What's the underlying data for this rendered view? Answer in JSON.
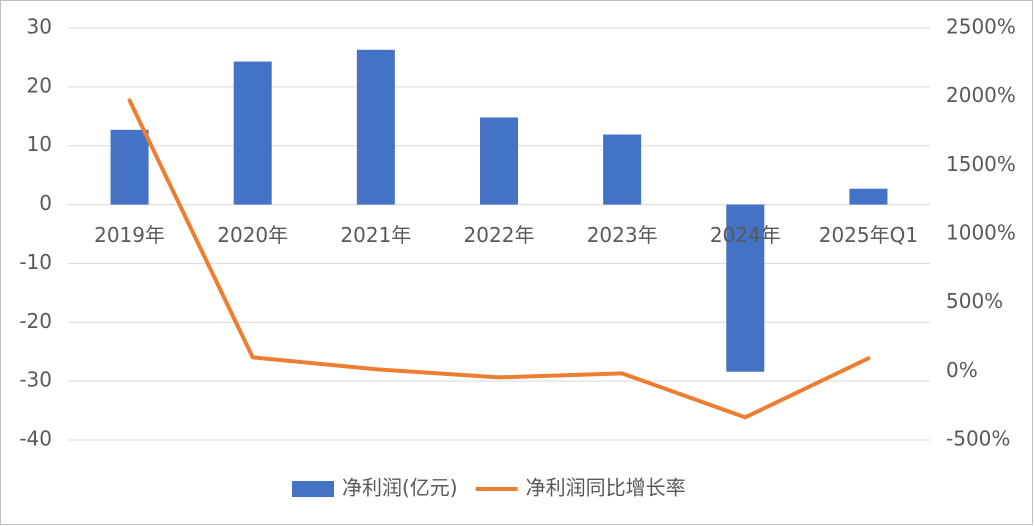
{
  "chart_data": {
    "type": "combo",
    "categories": [
      "2019年",
      "2020年",
      "2021年",
      "2022年",
      "2023年",
      "2024年",
      "2025年Q1"
    ],
    "series": [
      {
        "name": "净利润(亿元)",
        "type": "bar",
        "color": "#4472c4",
        "values": [
          12.7,
          24.3,
          26.3,
          14.8,
          11.9,
          -28.4,
          2.7
        ]
      },
      {
        "name": "净利润同比增长率",
        "type": "line",
        "axis": "y2",
        "color": "#ed7d31",
        "values": [
          1973,
          102,
          15,
          -44,
          -15,
          -335,
          95
        ]
      }
    ],
    "ylim": [
      -40,
      30
    ],
    "yticks": [
      -40,
      -30,
      -20,
      -10,
      0,
      10,
      20,
      30
    ],
    "y2lim": [
      -500,
      2500
    ],
    "y2ticks": [
      {
        "value": -500,
        "label": "-500%"
      },
      {
        "value": 0,
        "label": "0%"
      },
      {
        "value": 500,
        "label": "500%"
      },
      {
        "value": 1000,
        "label": "1000%"
      },
      {
        "value": 1500,
        "label": "1500%"
      },
      {
        "value": 2000,
        "label": "2000%"
      },
      {
        "value": 2500,
        "label": "2500%"
      }
    ],
    "grid": true,
    "legend": "bottom"
  }
}
